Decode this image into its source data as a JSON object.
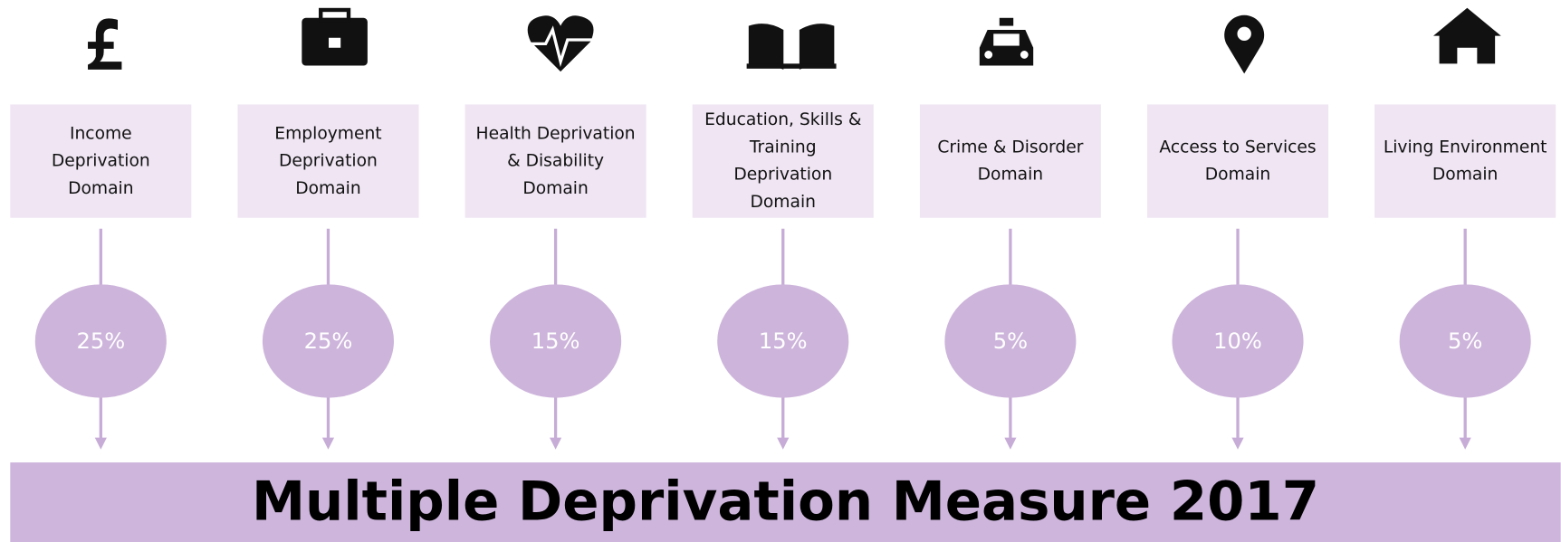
{
  "domains": [
    {
      "label": [
        "Income",
        "Deprivation",
        "Domain"
      ],
      "weight": "25%"
    },
    {
      "label": [
        "Employment",
        "Deprivation",
        "Domain"
      ],
      "weight": "25%"
    },
    {
      "label": [
        "Health Deprivation",
        "& Disability",
        "Domain"
      ],
      "weight": "15%"
    },
    {
      "label": [
        "Education, Skills &",
        "Training",
        "Deprivation",
        "Domain"
      ],
      "weight": "15%"
    },
    {
      "label": [
        "Crime & Disorder",
        "Domain"
      ],
      "weight": "5%"
    },
    {
      "label": [
        "Access to Services",
        "Domain"
      ],
      "weight": "10%"
    },
    {
      "label": [
        "Living Environment",
        "Domain"
      ],
      "weight": "5%"
    }
  ],
  "footer": "Multiple Deprivation Measure 2017"
}
